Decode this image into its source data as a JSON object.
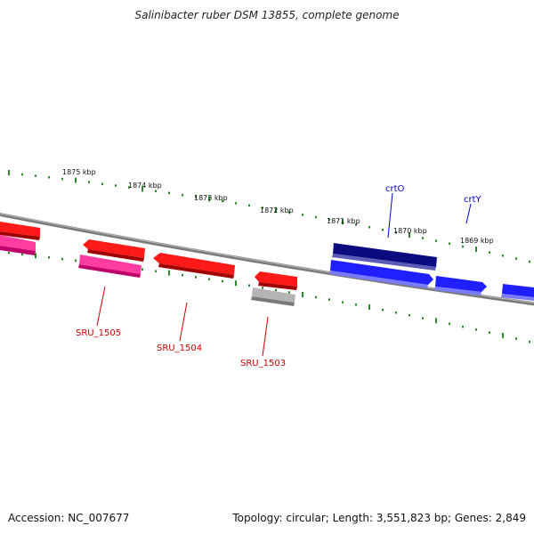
{
  "header": {
    "title": "Salinibacter ruber DSM 13855, complete genome"
  },
  "footer": {
    "accession": "Accession: NC_007677",
    "summary": "Topology: circular; Length: 3,551,823 bp; Genes: 2,849"
  },
  "colors": {
    "backbone": "#808080",
    "tick": "#2a8a2a",
    "tick_label": "#111111",
    "red_gene": "#ff1a1a",
    "pink_gene": "#ff3ca0",
    "gray_gene": "#b4b4b4",
    "blue_gene": "#1f1fff",
    "navy_gene": "#0b0b80",
    "red_label": "#cc0000",
    "blue_label": "#0000cc"
  },
  "scale_labels": [
    "1875 kbp",
    "1874 kbp",
    "1873 kbp",
    "1872 kbp",
    "1871 kbp",
    "1870 kbp",
    "1869 kbp"
  ],
  "gene_labels": [
    {
      "name": "SRU_1505",
      "strand": "reverse"
    },
    {
      "name": "SRU_1504",
      "strand": "reverse"
    },
    {
      "name": "SRU_1503",
      "strand": "reverse"
    },
    {
      "name": "crtO",
      "strand": "forward"
    },
    {
      "name": "crtY",
      "strand": "forward"
    }
  ]
}
